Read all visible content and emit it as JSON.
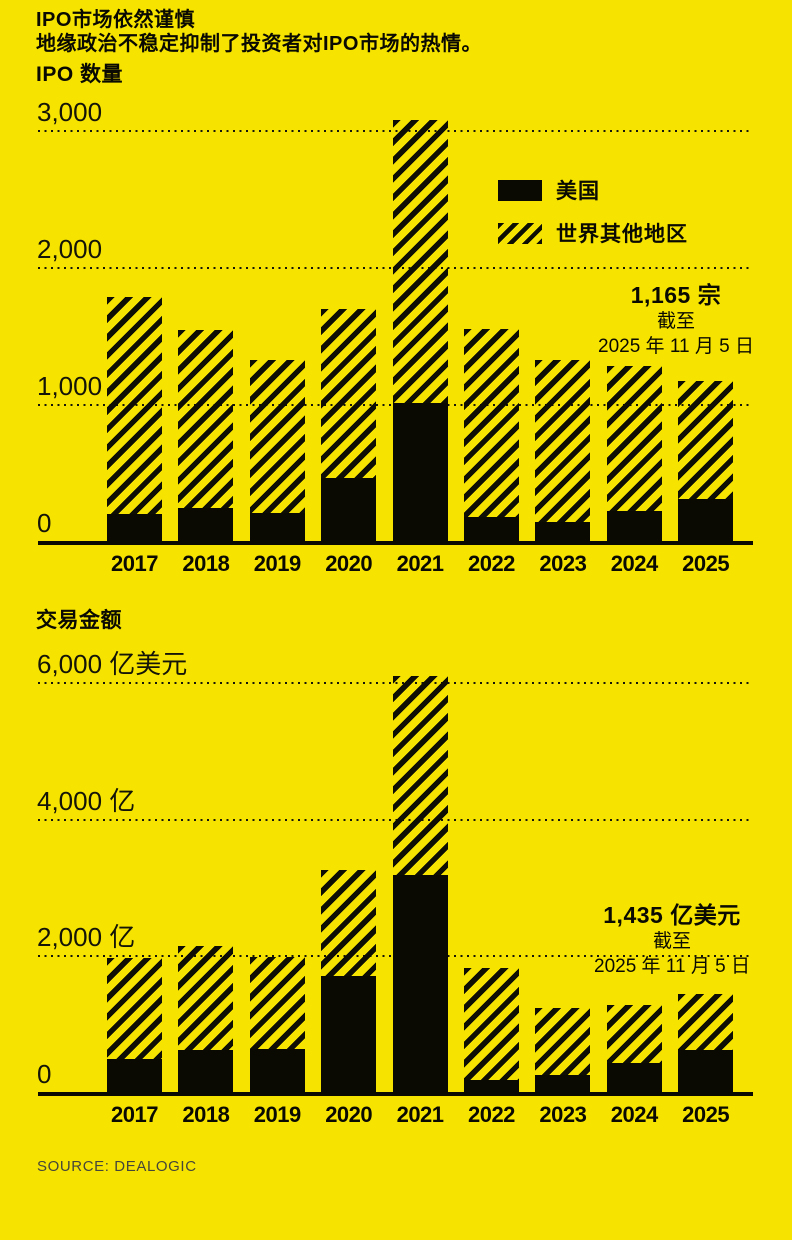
{
  "header": {
    "title": "IPO市场依然谨慎",
    "subtitle": "地缘政治不稳定抑制了投资者对IPO市场的热情。"
  },
  "colors": {
    "background": "#F6E400",
    "bar_solid": "#0A0A02",
    "hatch": "#0E0E04",
    "text": "#0A0A02",
    "source_text": "#45453A"
  },
  "legend": {
    "us": "美国",
    "rest_of_world": "世界其他地区"
  },
  "source": "SOURCE: DEALOGIC",
  "chart_data": [
    {
      "type": "bar",
      "stacked": true,
      "title": "IPO 数量",
      "categories": [
        "2017",
        "2018",
        "2019",
        "2020",
        "2021",
        "2022",
        "2023",
        "2024",
        "2025"
      ],
      "series": [
        {
          "name": "美国",
          "pattern": "solid",
          "values": [
            195,
            240,
            205,
            460,
            1010,
            175,
            140,
            220,
            305
          ]
        },
        {
          "name": "世界其他地区",
          "pattern": "hatched",
          "values": [
            1585,
            1300,
            1115,
            1235,
            2060,
            1375,
            1185,
            1060,
            860
          ]
        }
      ],
      "totals": [
        1780,
        1540,
        1320,
        1695,
        3070,
        1550,
        1325,
        1280,
        1165
      ],
      "y_ticks": [
        {
          "value": 3000,
          "label": "3,000"
        },
        {
          "value": 2000,
          "label": "2,000"
        },
        {
          "value": 1000,
          "label": "1,000"
        },
        {
          "value": 0,
          "label": "0"
        }
      ],
      "ylim": [
        0,
        3110
      ],
      "grid": "dotted-horizontal",
      "legend_position": "inside-top-right",
      "annotation": {
        "line1": "1,165 宗",
        "line2": "截至",
        "line3": "2025 年 11 月 5 日"
      }
    },
    {
      "type": "bar",
      "stacked": true,
      "title": "交易金额",
      "unit": "亿美元",
      "categories": [
        "2017",
        "2018",
        "2019",
        "2020",
        "2021",
        "2022",
        "2023",
        "2024",
        "2025"
      ],
      "series": [
        {
          "name": "美国",
          "pattern": "solid",
          "values": [
            490,
            610,
            635,
            1700,
            3170,
            180,
            255,
            425,
            620
          ]
        },
        {
          "name": "世界其他地区",
          "pattern": "hatched",
          "values": [
            1475,
            1520,
            1340,
            1555,
            2920,
            1640,
            970,
            845,
            815
          ]
        }
      ],
      "totals": [
        1965,
        2130,
        1975,
        3255,
        6090,
        1820,
        1225,
        1270,
        1435
      ],
      "y_ticks": [
        {
          "value": 6000,
          "label": "6,000 亿美元"
        },
        {
          "value": 4000,
          "label": "4,000 亿"
        },
        {
          "value": 2000,
          "label": "2,000 亿"
        },
        {
          "value": 0,
          "label": "0"
        }
      ],
      "ylim": [
        0,
        6160
      ],
      "grid": "dotted-horizontal",
      "legend_position": "none",
      "annotation": {
        "line1": "1,435 亿美元",
        "line2": "截至",
        "line3": "2025 年 11 月 5 日"
      }
    }
  ]
}
